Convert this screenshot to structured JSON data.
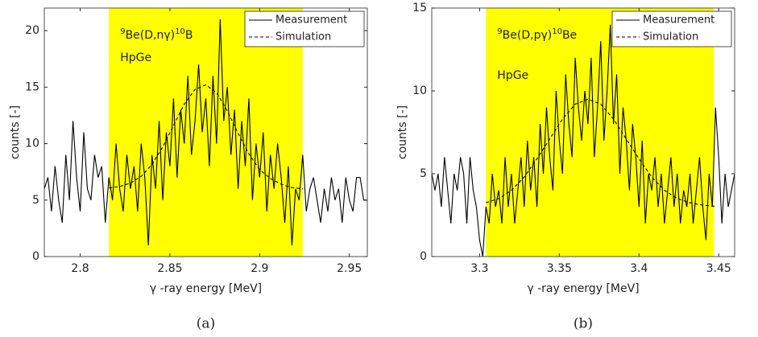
{
  "chart_data": [
    {
      "type": "line",
      "panel_label": "(a)",
      "x_label": "γ -ray energy [MeV]",
      "y_label": "counts [-]",
      "xlim": [
        2.78,
        2.96
      ],
      "xticks": [
        2.8,
        2.85,
        2.9,
        2.95
      ],
      "ylim": [
        0,
        22
      ],
      "yticks": [
        0,
        5,
        10,
        15,
        20
      ],
      "highlight": [
        2.816,
        2.924
      ],
      "highlight_color": "#ffff00",
      "legend": "upper right",
      "reaction": [
        {
          "text": "9",
          "sup": true
        },
        {
          "text": "Be(D,nγ)",
          "sup": false
        },
        {
          "text": "10",
          "sup": true
        },
        {
          "text": "B",
          "sup": false
        }
      ],
      "detector": "HpGe",
      "detector_color": "#1f1fb4",
      "series": [
        {
          "name": "Measurement",
          "color": "#000000",
          "dashed": false,
          "x": [
            2.78,
            2.782,
            2.784,
            2.786,
            2.788,
            2.79,
            2.792,
            2.794,
            2.796,
            2.798,
            2.8,
            2.802,
            2.804,
            2.806,
            2.808,
            2.81,
            2.812,
            2.814,
            2.816,
            2.818,
            2.82,
            2.822,
            2.824,
            2.826,
            2.828,
            2.83,
            2.832,
            2.834,
            2.836,
            2.838,
            2.84,
            2.842,
            2.844,
            2.846,
            2.848,
            2.85,
            2.852,
            2.854,
            2.856,
            2.858,
            2.86,
            2.862,
            2.864,
            2.866,
            2.868,
            2.87,
            2.872,
            2.874,
            2.876,
            2.878,
            2.88,
            2.882,
            2.884,
            2.886,
            2.888,
            2.89,
            2.892,
            2.894,
            2.896,
            2.898,
            2.9,
            2.902,
            2.904,
            2.906,
            2.908,
            2.91,
            2.912,
            2.914,
            2.916,
            2.918,
            2.92,
            2.922,
            2.924,
            2.926,
            2.928,
            2.93,
            2.932,
            2.934,
            2.936,
            2.938,
            2.94,
            2.942,
            2.944,
            2.946,
            2.948,
            2.95,
            2.952,
            2.954,
            2.956,
            2.958,
            2.96
          ],
          "values": [
            6,
            7,
            4,
            8,
            5,
            3,
            9,
            5,
            12,
            7,
            4,
            11,
            6,
            5,
            9,
            7,
            8,
            3,
            7,
            5,
            10,
            6,
            4,
            9,
            6,
            8,
            4,
            10,
            7,
            1,
            9,
            6,
            12,
            5,
            11,
            8,
            14,
            7,
            13,
            10,
            16,
            9,
            12,
            17,
            11,
            14,
            8,
            16,
            10,
            21,
            12,
            15,
            9,
            13,
            6,
            12,
            8,
            14,
            5,
            10,
            7,
            11,
            4,
            9,
            6,
            10,
            7,
            3,
            8,
            1,
            6,
            5,
            9,
            4,
            6,
            7,
            5,
            3,
            6,
            4,
            7,
            5,
            6,
            3,
            7,
            5,
            4,
            7,
            7,
            5,
            5
          ]
        },
        {
          "name": "Simulation",
          "color": "#000000",
          "dashed": true,
          "x": [
            2.816,
            2.822,
            2.828,
            2.834,
            2.84,
            2.846,
            2.852,
            2.858,
            2.864,
            2.87,
            2.876,
            2.882,
            2.888,
            2.894,
            2.9,
            2.906,
            2.912,
            2.918,
            2.924
          ],
          "values": [
            6.07,
            6.2,
            6.5,
            7.1,
            8.15,
            9.7,
            11.6,
            13.5,
            14.8,
            15.2,
            14.5,
            12.9,
            10.9,
            9.1,
            7.7,
            6.9,
            6.4,
            6.1,
            6.0
          ]
        }
      ]
    },
    {
      "type": "line",
      "panel_label": "(b)",
      "x_label": "γ -ray energy [MeV]",
      "y_label": "counts [-]",
      "xlim": [
        3.27,
        3.46
      ],
      "xticks": [
        3.3,
        3.35,
        3.4,
        3.45
      ],
      "ylim": [
        0,
        15
      ],
      "yticks": [
        0,
        5,
        10,
        15
      ],
      "highlight": [
        3.304,
        3.447
      ],
      "highlight_color": "#ffff00",
      "legend": "upper right",
      "reaction": [
        {
          "text": "9",
          "sup": true
        },
        {
          "text": "Be(D,pγ)",
          "sup": false
        },
        {
          "text": "10",
          "sup": true
        },
        {
          "text": "Be",
          "sup": false
        }
      ],
      "detector": "HpGe",
      "detector_color": "#1f1fb4",
      "series": [
        {
          "name": "Measurement",
          "color": "#000000",
          "dashed": false,
          "x": [
            3.27,
            3.272,
            3.274,
            3.276,
            3.278,
            3.28,
            3.282,
            3.284,
            3.286,
            3.288,
            3.29,
            3.292,
            3.294,
            3.296,
            3.298,
            3.3,
            3.302,
            3.304,
            3.306,
            3.308,
            3.31,
            3.312,
            3.314,
            3.316,
            3.318,
            3.32,
            3.322,
            3.324,
            3.326,
            3.328,
            3.33,
            3.332,
            3.334,
            3.336,
            3.338,
            3.34,
            3.342,
            3.344,
            3.346,
            3.348,
            3.35,
            3.352,
            3.354,
            3.356,
            3.358,
            3.36,
            3.362,
            3.364,
            3.366,
            3.368,
            3.37,
            3.372,
            3.374,
            3.376,
            3.378,
            3.38,
            3.382,
            3.384,
            3.386,
            3.388,
            3.39,
            3.392,
            3.394,
            3.396,
            3.398,
            3.4,
            3.402,
            3.404,
            3.406,
            3.408,
            3.41,
            3.412,
            3.414,
            3.416,
            3.418,
            3.42,
            3.422,
            3.424,
            3.426,
            3.428,
            3.43,
            3.432,
            3.434,
            3.436,
            3.438,
            3.44,
            3.442,
            3.444,
            3.446,
            3.448,
            3.45,
            3.452,
            3.454,
            3.456,
            3.458,
            3.46
          ],
          "values": [
            5,
            4,
            5,
            3,
            6,
            4,
            2,
            5,
            4,
            6,
            5,
            2,
            6,
            4,
            3,
            1,
            0,
            3,
            2,
            5,
            3,
            4,
            2,
            6,
            3,
            5,
            2,
            4,
            6,
            3,
            7,
            4,
            6,
            3,
            8,
            5,
            9,
            6,
            4,
            10,
            7,
            5,
            11,
            8,
            6,
            12,
            9,
            7,
            10,
            8,
            12,
            6,
            9,
            13,
            7,
            10,
            14,
            8,
            11,
            5,
            9,
            7,
            4,
            8,
            6,
            3,
            7,
            2,
            5,
            4,
            6,
            3,
            5,
            2,
            4,
            6,
            3,
            5,
            2,
            4,
            3,
            5,
            2,
            4,
            6,
            3,
            1,
            5,
            3,
            9,
            6,
            2,
            5,
            3,
            4,
            5
          ]
        },
        {
          "name": "Simulation",
          "color": "#000000",
          "dashed": true,
          "x": [
            3.304,
            3.312,
            3.32,
            3.328,
            3.336,
            3.344,
            3.352,
            3.36,
            3.368,
            3.376,
            3.384,
            3.392,
            3.4,
            3.408,
            3.416,
            3.424,
            3.432,
            3.44,
            3.448
          ],
          "values": [
            3.25,
            3.5,
            4.0,
            4.8,
            5.9,
            7.1,
            8.3,
            9.2,
            9.5,
            9.2,
            8.3,
            7.1,
            5.9,
            4.8,
            4.0,
            3.5,
            3.25,
            3.1,
            3.04
          ]
        }
      ]
    }
  ]
}
